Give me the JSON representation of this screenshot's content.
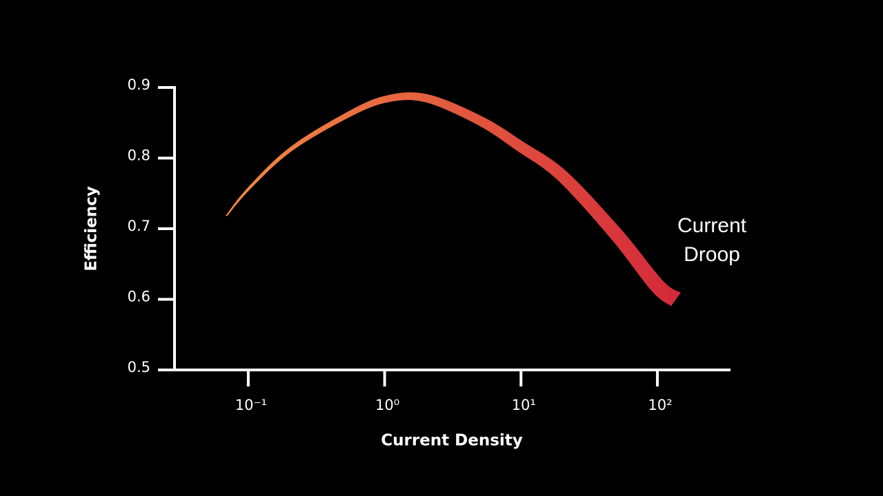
{
  "chart_data": {
    "type": "line",
    "x_label": "Current Density",
    "y_label": "Efficiency",
    "annotation": [
      "Current",
      "Droop"
    ],
    "x": [
      0.069,
      0.1,
      0.2,
      0.5,
      1,
      2,
      5,
      10,
      20,
      50,
      100,
      137
    ],
    "series": [
      {
        "color": [
          "#f28c42",
          "#d4283a"
        ],
        "values": [
          0.718,
          0.756,
          0.811,
          0.858,
          0.883,
          0.885,
          0.853,
          0.816,
          0.775,
          0.692,
          0.619,
          0.6
        ]
      }
    ],
    "xscale": "log",
    "xlim": [
      0.0288,
      340
    ],
    "xticks": [
      {
        "value": 0.1,
        "label": "10⁻¹"
      },
      {
        "value": 1,
        "label": "10⁰"
      },
      {
        "value": 10,
        "label": "10¹"
      },
      {
        "value": 100,
        "label": "10²"
      }
    ],
    "ylim": [
      0.5,
      0.9
    ],
    "yticks": [
      0.5,
      0.6,
      0.7,
      0.8,
      0.9
    ]
  }
}
